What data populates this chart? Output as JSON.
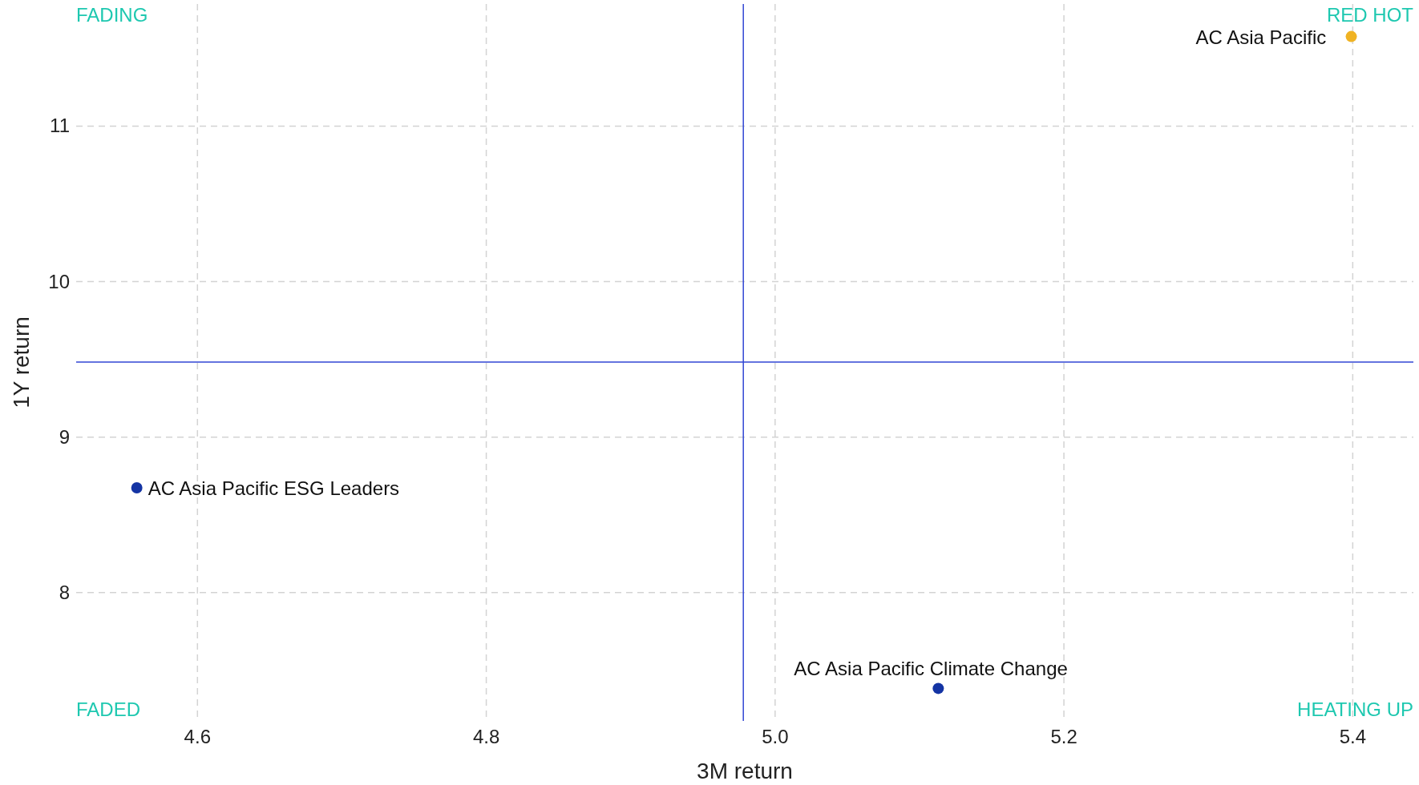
{
  "chart_data": {
    "type": "scatter",
    "xlabel": "3M return",
    "ylabel": "1Y return",
    "xlim": [
      4.516,
      5.442
    ],
    "xticks": [
      4.6,
      4.8,
      {
        "value": 5.0,
        "label": "5.0"
      },
      5.2,
      5.4
    ],
    "ylim": [
      7.175,
      11.785
    ],
    "yticks": [
      8,
      9,
      10,
      11
    ],
    "grid": true,
    "marker": "circle",
    "series": [
      {
        "name": "AC Asia Pacific",
        "color": "#f0b323",
        "x": [
          5.399
        ],
        "values": [
          11.576
        ]
      },
      {
        "name": "AC Asia Pacific ESG Leaders",
        "color": "#1434a4",
        "x": [
          4.558
        ],
        "values": [
          8.674
        ]
      },
      {
        "name": "AC Asia Pacific Climate Change",
        "color": "#1434a4",
        "x": [
          5.113
        ],
        "values": [
          7.384
        ]
      }
    ],
    "ref_lines": [
      {
        "axis": "x",
        "value": 4.978,
        "color": "#3146d4"
      },
      {
        "axis": "y",
        "value": 9.483,
        "color": "#3146d4"
      }
    ],
    "annotations": [
      "FADING",
      "RED HOT",
      "FADED",
      "HEATING UP"
    ]
  }
}
